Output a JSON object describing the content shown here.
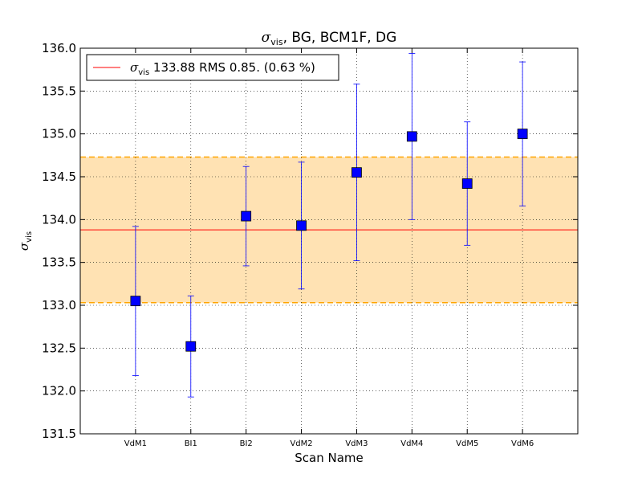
{
  "chart_data": {
    "type": "scatter",
    "title_prefix": "σ",
    "title_subscript": "vis",
    "title_suffix": ", BG, BCM1F, DG",
    "xlabel": "Scan Name",
    "ylabel_symbol": "σ",
    "ylabel_subscript": "vis",
    "categories": [
      "VdM1",
      "BI1",
      "BI2",
      "VdM2",
      "VdM3",
      "VdM4",
      "VdM5",
      "VdM6"
    ],
    "values": [
      133.05,
      132.52,
      134.04,
      133.93,
      134.55,
      134.97,
      134.42,
      135.0
    ],
    "errors": [
      0.87,
      0.59,
      0.58,
      0.74,
      1.03,
      0.97,
      0.72,
      0.84
    ],
    "ylim": [
      131.5,
      136.0
    ],
    "yticks": [
      "131.5",
      "132.0",
      "132.5",
      "133.0",
      "133.5",
      "134.0",
      "134.5",
      "135.0",
      "135.5",
      "136.0"
    ],
    "mean": 133.88,
    "band": [
      133.03,
      134.73
    ],
    "grid": true,
    "legend_position": "top-left",
    "legend": {
      "symbol": "σ",
      "subscript": "vis",
      "text": " 133.88 RMS 0.85. (0.63 %)"
    },
    "colors": {
      "marker": "#0000ff",
      "errorbar": "#0000ff",
      "mean_line": "#ff0000",
      "band_fill": "#ffe2b3",
      "band_edge": "#ffa500"
    }
  }
}
